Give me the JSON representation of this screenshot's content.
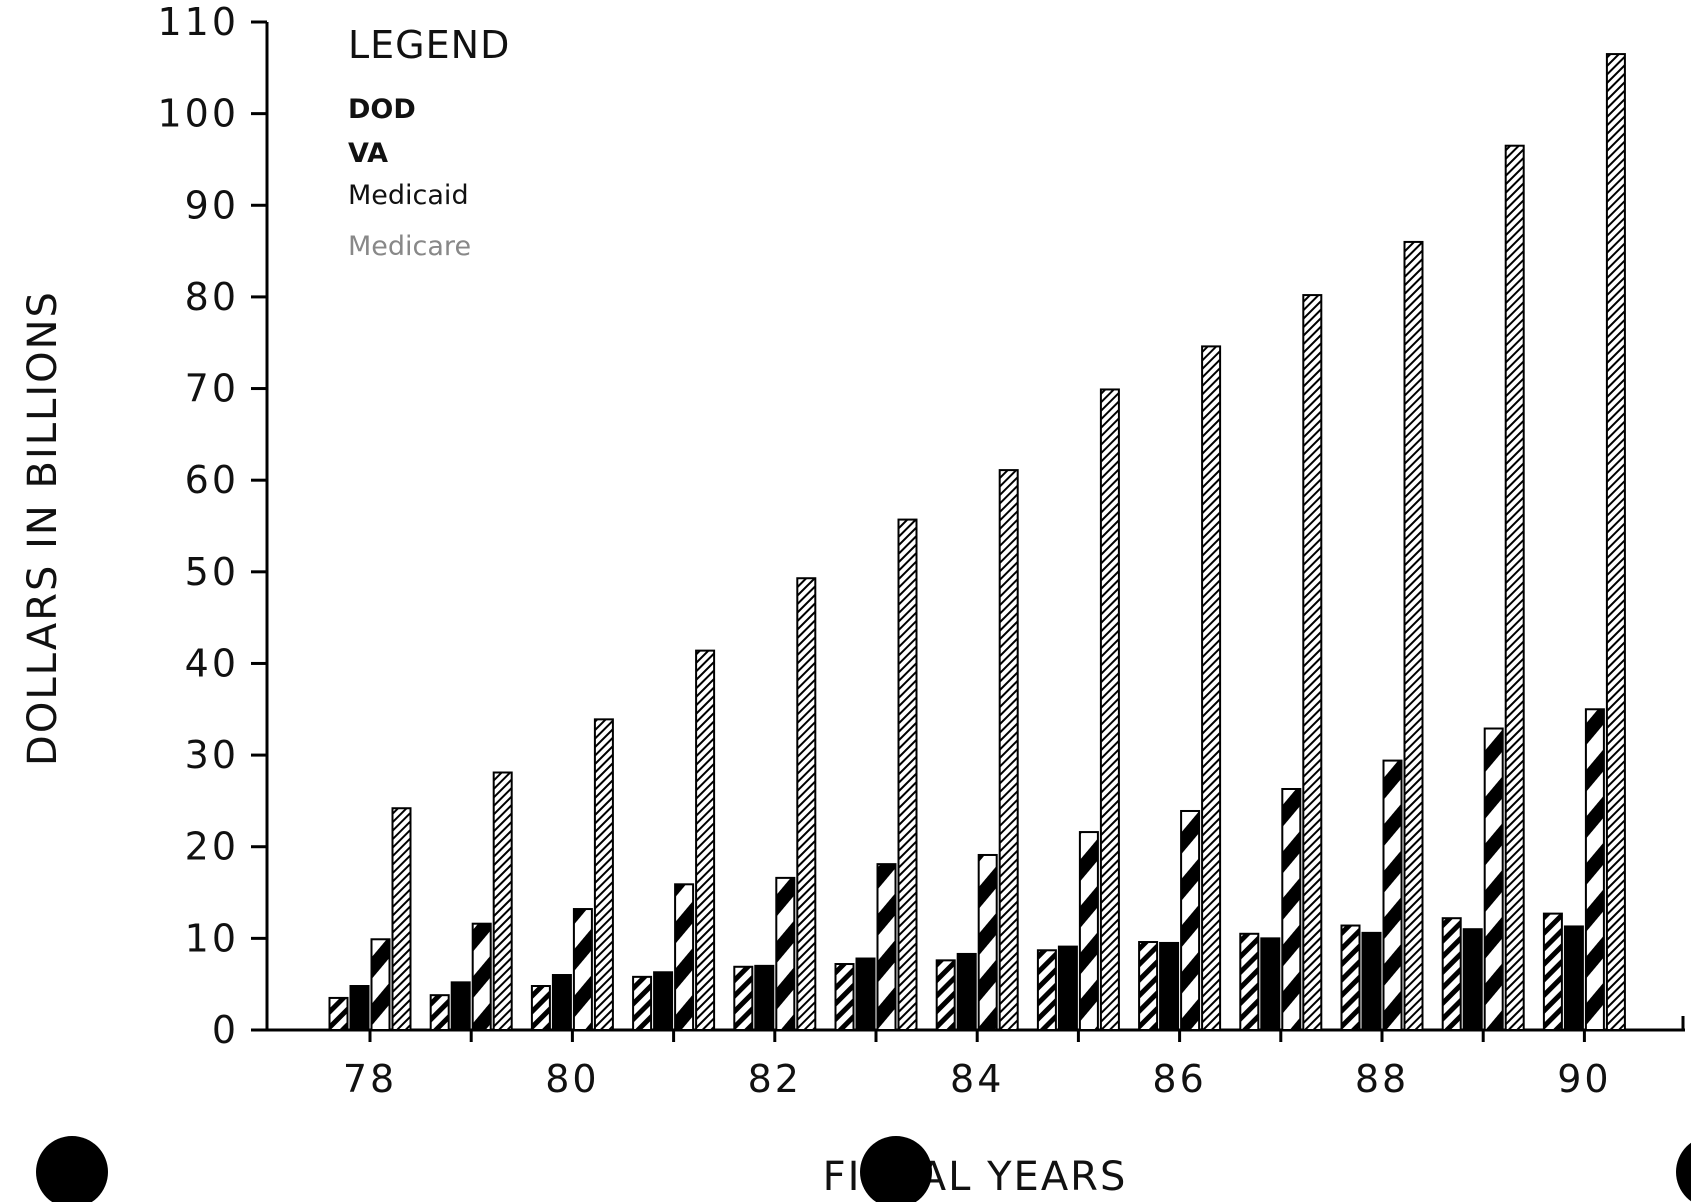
{
  "chart_data": {
    "type": "bar",
    "title": "",
    "xlabel": "FISCAL YEARS",
    "ylabel": "DOLLARS IN BILLIONS",
    "ylim": [
      0,
      110
    ],
    "yticks": [
      0,
      10,
      20,
      30,
      40,
      50,
      60,
      70,
      80,
      90,
      100,
      110
    ],
    "categories": [
      "78",
      "79",
      "80",
      "81",
      "82",
      "83",
      "84",
      "85",
      "86",
      "87",
      "88",
      "89",
      "90"
    ],
    "xtick_labels": [
      "78",
      "80",
      "82",
      "84",
      "86",
      "88",
      "90"
    ],
    "grid": false,
    "legend": {
      "title": "LEGEND",
      "placement": "top-left"
    },
    "series": [
      {
        "name": "DOD",
        "values": [
          3.5,
          3.8,
          4.8,
          5.8,
          6.9,
          7.2,
          7.6,
          8.7,
          9.6,
          10.5,
          11.4,
          12.2,
          12.7
        ],
        "pattern": "hatch-bold"
      },
      {
        "name": "VA",
        "values": [
          4.8,
          5.2,
          6.0,
          6.3,
          7.0,
          7.8,
          8.3,
          9.1,
          9.5,
          10.0,
          10.6,
          11.0,
          11.3
        ],
        "pattern": "solid"
      },
      {
        "name": "Medicaid",
        "values": [
          9.9,
          11.6,
          13.2,
          15.9,
          16.6,
          18.1,
          19.1,
          21.6,
          23.9,
          26.3,
          29.4,
          32.9,
          35.0
        ],
        "pattern": "wide-diagonal"
      },
      {
        "name": "Medicare",
        "values": [
          24.2,
          28.1,
          33.9,
          41.4,
          49.3,
          55.7,
          61.1,
          69.9,
          74.6,
          80.2,
          86.0,
          96.5,
          106.5
        ],
        "pattern": "fine-hatch"
      }
    ]
  }
}
